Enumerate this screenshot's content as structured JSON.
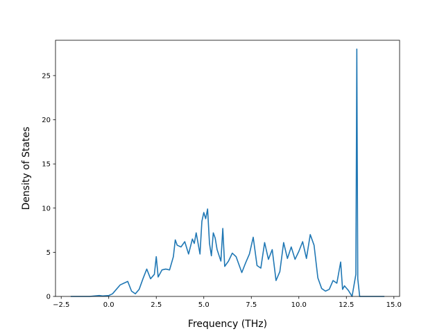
{
  "chart_data": {
    "type": "line",
    "xlabel": "Frequency (THz)",
    "ylabel": "Density of States",
    "xlim": [
      -2.8,
      15.3
    ],
    "ylim": [
      0,
      29
    ],
    "xticks": [
      -2.5,
      0.0,
      2.5,
      5.0,
      7.5,
      10.0,
      12.5,
      15.0
    ],
    "xtick_labels": [
      "−2.5",
      "0.0",
      "2.5",
      "5.0",
      "7.5",
      "10.0",
      "12.5",
      "15.0"
    ],
    "yticks": [
      0,
      5,
      10,
      15,
      20,
      25
    ],
    "ytick_labels": [
      "0",
      "5",
      "10",
      "15",
      "20",
      "25"
    ],
    "grid": false,
    "legend": "none",
    "series": [
      {
        "color": "#1f77b4",
        "x": [
          -2.0,
          -1.0,
          -0.5,
          -0.3,
          0.0,
          0.2,
          0.4,
          0.6,
          0.8,
          1.0,
          1.2,
          1.4,
          1.6,
          1.8,
          2.0,
          2.2,
          2.4,
          2.5,
          2.6,
          2.8,
          3.0,
          3.2,
          3.4,
          3.5,
          3.6,
          3.8,
          4.0,
          4.2,
          4.4,
          4.5,
          4.6,
          4.8,
          4.9,
          5.0,
          5.1,
          5.2,
          5.3,
          5.4,
          5.5,
          5.6,
          5.7,
          5.9,
          6.0,
          6.1,
          6.3,
          6.5,
          6.7,
          7.0,
          7.2,
          7.4,
          7.6,
          7.8,
          8.0,
          8.2,
          8.4,
          8.6,
          8.8,
          9.0,
          9.2,
          9.4,
          9.6,
          9.8,
          10.0,
          10.2,
          10.4,
          10.6,
          10.8,
          11.0,
          11.2,
          11.4,
          11.6,
          11.8,
          12.0,
          12.2,
          12.3,
          12.4,
          12.6,
          12.8,
          13.0,
          13.05,
          13.1,
          13.2,
          14.5
        ],
        "y": [
          0.0,
          0.0,
          0.1,
          0.05,
          0.1,
          0.3,
          0.8,
          1.3,
          1.5,
          1.7,
          0.6,
          0.3,
          0.8,
          2.0,
          3.1,
          2.0,
          2.5,
          4.5,
          2.2,
          3.0,
          3.1,
          3.0,
          4.5,
          6.4,
          5.8,
          5.6,
          6.2,
          4.8,
          6.5,
          6.0,
          7.2,
          4.8,
          8.5,
          9.5,
          8.8,
          9.9,
          6.0,
          4.6,
          7.2,
          6.6,
          5.3,
          4.0,
          7.7,
          3.4,
          4.0,
          4.9,
          4.5,
          2.7,
          3.8,
          4.8,
          6.7,
          3.5,
          3.2,
          6.1,
          4.2,
          5.3,
          1.8,
          2.8,
          6.1,
          4.3,
          5.6,
          4.2,
          5.1,
          6.2,
          4.3,
          7.0,
          5.8,
          2.1,
          0.9,
          0.6,
          0.8,
          1.8,
          1.5,
          3.9,
          0.8,
          1.2,
          0.7,
          0.0,
          2.5,
          28.0,
          2.0,
          0.0,
          0.0
        ]
      }
    ]
  }
}
